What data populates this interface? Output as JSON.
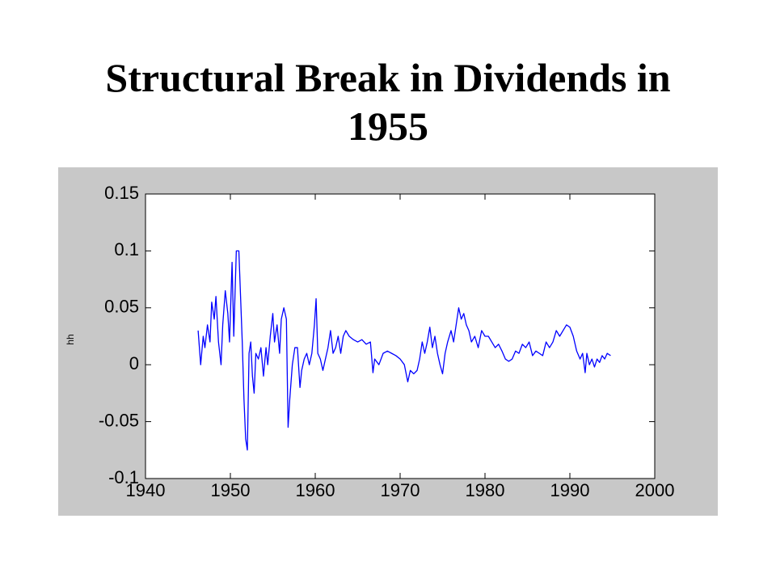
{
  "chart_data": {
    "type": "line",
    "title": "Structural Break in Dividends in 1955",
    "ylabel": "hh",
    "color": "#0000ff",
    "xlim": [
      1940,
      2000
    ],
    "xticks": [
      1940,
      1950,
      1960,
      1970,
      1980,
      1990,
      2000
    ],
    "ylim": [
      -0.1,
      0.15
    ],
    "yticks": [
      -0.1,
      -0.05,
      0,
      0.05,
      0.1,
      0.15
    ],
    "x": [
      1946.2,
      1946.5,
      1946.8,
      1947.0,
      1947.3,
      1947.6,
      1947.8,
      1948.1,
      1948.3,
      1948.6,
      1948.9,
      1949.1,
      1949.4,
      1949.7,
      1949.9,
      1950.2,
      1950.4,
      1950.7,
      1951.0,
      1951.2,
      1951.4,
      1951.6,
      1951.8,
      1952.0,
      1952.2,
      1952.4,
      1952.6,
      1952.8,
      1953.0,
      1953.3,
      1953.6,
      1953.9,
      1954.2,
      1954.4,
      1954.7,
      1955.0,
      1955.2,
      1955.5,
      1955.8,
      1956.0,
      1956.3,
      1956.6,
      1956.8,
      1957.0,
      1957.3,
      1957.6,
      1957.9,
      1958.2,
      1958.4,
      1958.7,
      1959.0,
      1959.3,
      1959.6,
      1959.9,
      1960.1,
      1960.3,
      1960.6,
      1960.9,
      1961.2,
      1961.5,
      1961.8,
      1962.1,
      1962.4,
      1962.7,
      1963.0,
      1963.3,
      1963.6,
      1964.0,
      1964.5,
      1965.0,
      1965.5,
      1966.0,
      1966.5,
      1966.8,
      1967.0,
      1967.5,
      1968.0,
      1968.5,
      1969.0,
      1969.5,
      1970.0,
      1970.5,
      1970.9,
      1971.2,
      1971.6,
      1972.0,
      1972.3,
      1972.6,
      1972.9,
      1973.2,
      1973.5,
      1973.8,
      1974.1,
      1974.4,
      1974.7,
      1975.0,
      1975.3,
      1975.6,
      1976.0,
      1976.3,
      1976.6,
      1976.9,
      1977.2,
      1977.5,
      1977.8,
      1978.1,
      1978.4,
      1978.8,
      1979.2,
      1979.6,
      1980.0,
      1980.4,
      1980.8,
      1981.2,
      1981.6,
      1982.0,
      1982.4,
      1982.8,
      1983.2,
      1983.6,
      1984.0,
      1984.4,
      1984.8,
      1985.2,
      1985.6,
      1986.0,
      1986.4,
      1986.8,
      1987.2,
      1987.6,
      1988.0,
      1988.4,
      1988.8,
      1989.2,
      1989.6,
      1990.0,
      1990.4,
      1990.8,
      1991.2,
      1991.5,
      1991.8,
      1992.0,
      1992.3,
      1992.6,
      1992.9,
      1993.2,
      1993.5,
      1993.8,
      1994.1,
      1994.4,
      1994.8
    ],
    "values": [
      0.03,
      0.0,
      0.025,
      0.015,
      0.035,
      0.02,
      0.055,
      0.04,
      0.06,
      0.02,
      0.0,
      0.035,
      0.065,
      0.045,
      0.02,
      0.09,
      0.025,
      0.1,
      0.1,
      0.06,
      0.02,
      -0.03,
      -0.065,
      -0.075,
      0.01,
      0.02,
      -0.01,
      -0.025,
      0.01,
      0.005,
      0.015,
      -0.01,
      0.015,
      0.0,
      0.025,
      0.045,
      0.02,
      0.035,
      0.01,
      0.04,
      0.05,
      0.04,
      -0.055,
      -0.03,
      0.0,
      0.015,
      0.015,
      -0.02,
      -0.005,
      0.005,
      0.01,
      0.0,
      0.01,
      0.035,
      0.058,
      0.01,
      0.005,
      -0.005,
      0.005,
      0.015,
      0.03,
      0.01,
      0.015,
      0.025,
      0.01,
      0.025,
      0.03,
      0.025,
      0.022,
      0.02,
      0.022,
      0.018,
      0.02,
      -0.007,
      0.005,
      0.0,
      0.01,
      0.012,
      0.01,
      0.008,
      0.005,
      0.0,
      -0.015,
      -0.005,
      -0.008,
      -0.005,
      0.005,
      0.02,
      0.01,
      0.02,
      0.033,
      0.015,
      0.025,
      0.01,
      0.0,
      -0.008,
      0.01,
      0.02,
      0.03,
      0.02,
      0.035,
      0.05,
      0.04,
      0.045,
      0.035,
      0.03,
      0.02,
      0.025,
      0.015,
      0.03,
      0.025,
      0.025,
      0.02,
      0.015,
      0.018,
      0.012,
      0.005,
      0.003,
      0.005,
      0.012,
      0.01,
      0.018,
      0.015,
      0.02,
      0.008,
      0.012,
      0.01,
      0.008,
      0.02,
      0.015,
      0.02,
      0.03,
      0.025,
      0.03,
      0.035,
      0.033,
      0.025,
      0.012,
      0.005,
      0.01,
      -0.007,
      0.01,
      0.0,
      0.005,
      -0.002,
      0.005,
      0.002,
      0.008,
      0.005,
      0.01,
      0.008
    ]
  }
}
